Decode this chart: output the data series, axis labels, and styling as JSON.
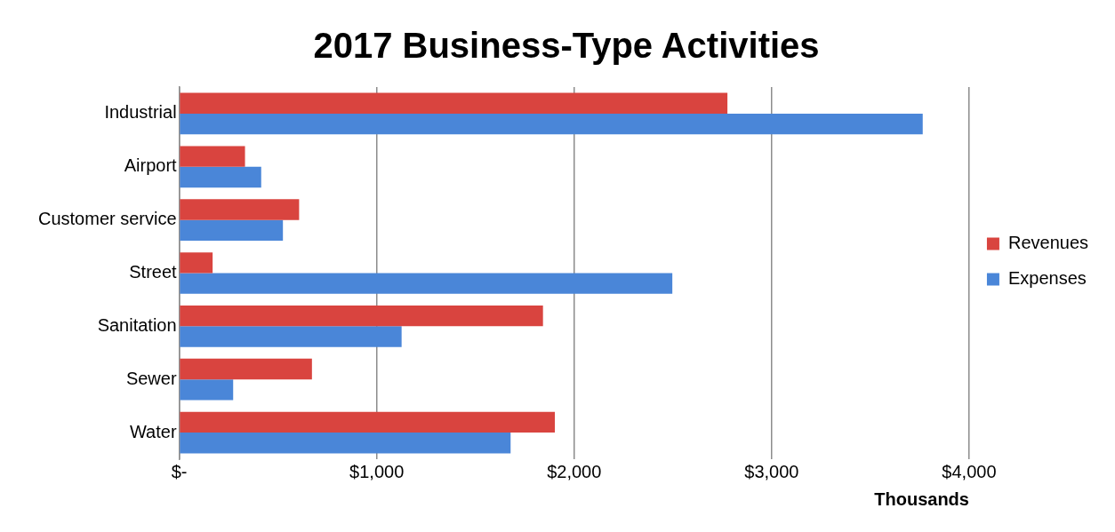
{
  "chart_data": {
    "type": "bar",
    "orientation": "horizontal",
    "title": "2017 Business-Type Activities",
    "xlabel": "Thousands",
    "categories": [
      "Industrial",
      "Airport",
      "Customer service",
      "Street",
      "Sanitation",
      "Sewer",
      "Water"
    ],
    "series": [
      {
        "name": "Revenues",
        "color": "#d9443f",
        "values": [
          2776,
          333,
          607,
          169,
          1842,
          672,
          1902
        ]
      },
      {
        "name": "Expenses",
        "color": "#4a86d8",
        "values": [
          3765,
          415,
          525,
          2497,
          1126,
          273,
          1678
        ]
      }
    ],
    "xlim": [
      0,
      4000
    ],
    "xticks": [
      {
        "value": 0,
        "label": "$-"
      },
      {
        "value": 1000,
        "label": "$1,000"
      },
      {
        "value": 2000,
        "label": "$2,000"
      },
      {
        "value": 3000,
        "label": "$3,000"
      },
      {
        "value": 4000,
        "label": "$4,000"
      }
    ],
    "grid": "x",
    "legend": "right"
  }
}
